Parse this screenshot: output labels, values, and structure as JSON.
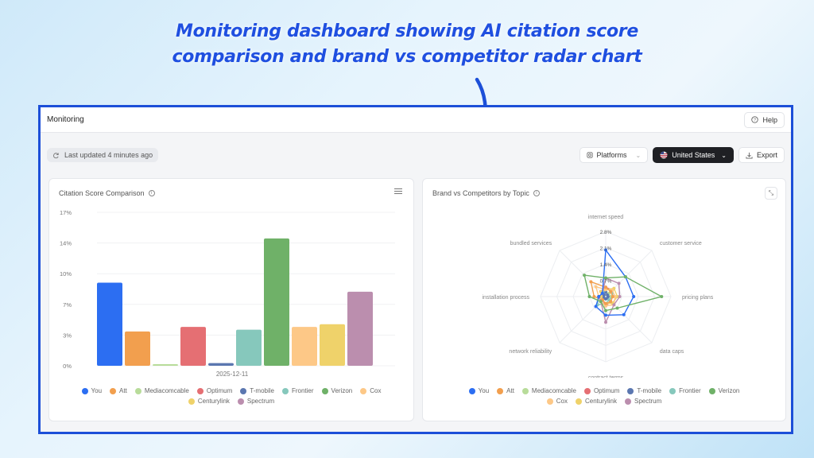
{
  "headline": {
    "line1": "Monitoring dashboard showing AI citation score",
    "line2": "comparison and brand vs competitor radar chart"
  },
  "app": {
    "title": "Monitoring",
    "help_label": "Help",
    "help_icon": "question-circle-icon",
    "last_updated": "Last updated 4 minutes ago",
    "refresh_icon": "refresh-icon",
    "platforms_label": "Platforms",
    "platforms_icon": "platform-icon",
    "country_label": "United States",
    "country_icon": "us-flag-icon",
    "export_label": "Export",
    "export_icon": "download-icon"
  },
  "colors": {
    "frame": "#1c4fd8",
    "headline": "#1f4fe0",
    "series": {
      "You": "#2c6ef2",
      "Att": "#f29f4e",
      "Mediacomcable": "#b8dc9a",
      "Optimum": "#e56f73",
      "T-mobile": "#5b77b0",
      "Frontier": "#86c8bc",
      "Verizon": "#6fb168",
      "Cox": "#fdc887",
      "Centurylink": "#efd26a",
      "Spectrum": "#bb8eae"
    }
  },
  "legend": [
    "You",
    "Att",
    "Mediacomcable",
    "Optimum",
    "T-mobile",
    "Frontier",
    "Verizon",
    "Cox",
    "Centurylink",
    "Spectrum"
  ],
  "chart_data": [
    {
      "type": "bar",
      "title": "Citation Score Comparison",
      "xlabel": "2025-12-11",
      "ylabel": "",
      "ylim": [
        0,
        17
      ],
      "yticks": [
        "0%",
        "3%",
        "7%",
        "10%",
        "14%",
        "17%"
      ],
      "ytick_values": [
        0,
        3.4,
        6.8,
        10.2,
        13.6,
        17
      ],
      "grid": true,
      "legend_position": "bottom",
      "categories": [
        "2025-12-11"
      ],
      "series": [
        {
          "name": "You",
          "values": [
            9.2
          ]
        },
        {
          "name": "Att",
          "values": [
            3.8
          ]
        },
        {
          "name": "Mediacomcable",
          "values": [
            0.1
          ]
        },
        {
          "name": "Optimum",
          "values": [
            4.3
          ]
        },
        {
          "name": "T-mobile",
          "values": [
            0.3
          ]
        },
        {
          "name": "Frontier",
          "values": [
            4.0
          ]
        },
        {
          "name": "Verizon",
          "values": [
            14.1
          ]
        },
        {
          "name": "Cox",
          "values": [
            4.3
          ]
        },
        {
          "name": "Centurylink",
          "values": [
            4.6
          ]
        },
        {
          "name": "Spectrum",
          "values": [
            8.2
          ]
        }
      ]
    },
    {
      "type": "radar",
      "title": "Brand vs Competitors by Topic",
      "axes": [
        "internet speed",
        "customer service",
        "pricing plans",
        "data caps",
        "contract terms",
        "network reliability",
        "installation process",
        "bundled services"
      ],
      "rlim": [
        0,
        2.8
      ],
      "rticks": [
        "0.7%",
        "1.4%",
        "2.1%",
        "2.8%"
      ],
      "legend_position": "bottom",
      "series": [
        {
          "name": "You",
          "values": [
            2.0,
            1.2,
            1.2,
            1.1,
            0.8,
            0.6,
            0.3,
            0.2
          ]
        },
        {
          "name": "Att",
          "values": [
            0.4,
            0.3,
            0.3,
            0.3,
            0.3,
            0.2,
            0.5,
            0.9
          ]
        },
        {
          "name": "Mediacomcable",
          "values": [
            0.2,
            0.2,
            0.2,
            0.1,
            0.1,
            0.1,
            0.1,
            0.1
          ]
        },
        {
          "name": "Optimum",
          "values": [
            0.4,
            0.4,
            0.3,
            0.3,
            0.4,
            0.2,
            0.2,
            0.3
          ]
        },
        {
          "name": "T-mobile",
          "values": [
            0.2,
            0.1,
            0.1,
            0.1,
            0.1,
            0.1,
            0.1,
            0.1
          ]
        },
        {
          "name": "Frontier",
          "values": [
            0.3,
            0.4,
            0.3,
            0.2,
            0.3,
            0.5,
            0.3,
            0.2
          ]
        },
        {
          "name": "Verizon",
          "values": [
            0.8,
            1.2,
            2.4,
            0.7,
            0.6,
            0.3,
            0.7,
            1.3
          ]
        },
        {
          "name": "Cox",
          "values": [
            0.3,
            0.4,
            0.4,
            0.5,
            0.4,
            0.3,
            0.3,
            0.6
          ]
        },
        {
          "name": "Centurylink",
          "values": [
            0.3,
            0.5,
            0.5,
            0.4,
            0.3,
            0.2,
            0.2,
            0.3
          ]
        },
        {
          "name": "Spectrum",
          "values": [
            0.8,
            0.8,
            0.6,
            0.5,
            1.1,
            0.3,
            0.3,
            0.2
          ]
        }
      ]
    }
  ]
}
